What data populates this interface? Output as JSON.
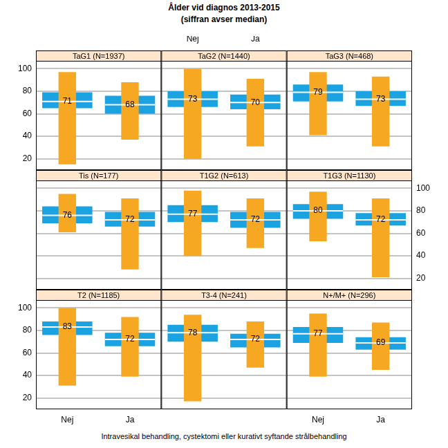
{
  "title": "Ålder vid diagnos 2013-2015",
  "subtitle": "(siffran avser median)",
  "xlabel": "Intravesikal behandling, cystektomi eller kurativt syftande strålbehandling",
  "chart_data": [
    {
      "type": "box",
      "title": "TaG1 (N=1937)",
      "categories": [
        "Nej",
        "Ja"
      ],
      "series": [
        {
          "type": "box",
          "color": "#1BA3E1",
          "values": [
            [
              65,
              71,
              79
            ],
            [
              60,
              68,
              76
            ]
          ]
        },
        {
          "type": "range",
          "color": "#F7A823",
          "values": [
            [
              15,
              97
            ],
            [
              37,
              88
            ]
          ]
        }
      ],
      "ylim": [
        10,
        107
      ],
      "yticks": [
        20,
        40,
        60,
        80,
        100
      ],
      "grid": true,
      "data_labels": true,
      "tick_labels": "y"
    },
    {
      "type": "box",
      "title": "TaG2 (N=1440)",
      "categories": [
        "Nej",
        "Ja"
      ],
      "series": [
        {
          "type": "box",
          "color": "#1BA3E1",
          "values": [
            [
              66,
              73,
              80
            ],
            [
              64,
              70,
              77
            ]
          ]
        },
        {
          "type": "range",
          "color": "#F7A823",
          "values": [
            [
              20,
              100
            ],
            [
              31,
              91
            ]
          ]
        }
      ],
      "ylim": [
        10,
        107
      ],
      "yticks": [
        20,
        40,
        60,
        80,
        100
      ],
      "grid": true,
      "data_labels": true,
      "tick_labels": "x"
    },
    {
      "type": "box",
      "title": "TaG3 (N=468)",
      "categories": [
        "Nej",
        "Ja"
      ],
      "series": [
        {
          "type": "box",
          "color": "#1BA3E1",
          "values": [
            [
              71,
              79,
              86
            ],
            [
              67,
              73,
              80
            ]
          ]
        },
        {
          "type": "range",
          "color": "#F7A823",
          "values": [
            [
              41,
              97
            ],
            [
              31,
              93
            ]
          ]
        }
      ],
      "ylim": [
        10,
        107
      ],
      "yticks": [
        20,
        40,
        60,
        80,
        100
      ],
      "grid": true,
      "data_labels": true,
      "tick_labels": false
    },
    {
      "type": "box",
      "title": "Tis (N=177)",
      "categories": [
        "Nej",
        "Ja"
      ],
      "series": [
        {
          "type": "box",
          "color": "#1BA3E1",
          "values": [
            [
              69,
              76,
              84
            ],
            [
              66,
              72,
              79
            ]
          ]
        },
        {
          "type": "range",
          "color": "#F7A823",
          "values": [
            [
              61,
              95
            ],
            [
              28,
              91
            ]
          ]
        }
      ],
      "ylim": [
        10,
        107
      ],
      "yticks": [
        20,
        40,
        60,
        80,
        100
      ],
      "grid": true,
      "data_labels": true,
      "tick_labels": false
    },
    {
      "type": "box",
      "title": "T1G2 (N=613)",
      "categories": [
        "Nej",
        "Ja"
      ],
      "series": [
        {
          "type": "box",
          "color": "#1BA3E1",
          "values": [
            [
              70,
              77,
              85
            ],
            [
              65,
              72,
              79
            ]
          ]
        },
        {
          "type": "range",
          "color": "#F7A823",
          "values": [
            [
              40,
              98
            ],
            [
              47,
              91
            ]
          ]
        }
      ],
      "ylim": [
        10,
        107
      ],
      "yticks": [
        20,
        40,
        60,
        80,
        100
      ],
      "grid": true,
      "data_labels": true,
      "tick_labels": false
    },
    {
      "type": "box",
      "title": "T1G3 (N=1130)",
      "categories": [
        "Nej",
        "Ja"
      ],
      "series": [
        {
          "type": "box",
          "color": "#1BA3E1",
          "values": [
            [
              73,
              80,
              86
            ],
            [
              67,
              72,
              78
            ]
          ]
        },
        {
          "type": "range",
          "color": "#F7A823",
          "values": [
            [
              53,
              97
            ],
            [
              21,
              91
            ]
          ]
        }
      ],
      "ylim": [
        10,
        107
      ],
      "yticks": [
        20,
        40,
        60,
        80,
        100
      ],
      "grid": true,
      "data_labels": true,
      "tick_labels": "y"
    },
    {
      "type": "box",
      "title": "T2 (N=1185)",
      "categories": [
        "Nej",
        "Ja"
      ],
      "series": [
        {
          "type": "box",
          "color": "#1BA3E1",
          "values": [
            [
              76,
              83,
              88
            ],
            [
              66,
              72,
              78
            ]
          ]
        },
        {
          "type": "range",
          "color": "#F7A823",
          "values": [
            [
              31,
              100
            ],
            [
              39,
              92
            ]
          ]
        }
      ],
      "ylim": [
        10,
        107
      ],
      "yticks": [
        20,
        40,
        60,
        80,
        100
      ],
      "grid": true,
      "data_labels": true
    },
    {
      "type": "box",
      "title": "T3-4 (N=241)",
      "categories": [
        "Nej",
        "Ja"
      ],
      "series": [
        {
          "type": "box",
          "color": "#1BA3E1",
          "values": [
            [
              70,
              78,
              85
            ],
            [
              65,
              72,
              77
            ]
          ]
        },
        {
          "type": "range",
          "color": "#F7A823",
          "values": [
            [
              17,
              94
            ],
            [
              47,
              88
            ]
          ]
        }
      ],
      "ylim": [
        10,
        107
      ],
      "yticks": [
        20,
        40,
        60,
        80,
        100
      ],
      "grid": true,
      "data_labels": true,
      "tick_labels": false
    },
    {
      "type": "box",
      "title": "N+/M+ (N=296)",
      "categories": [
        "Nej",
        "Ja"
      ],
      "series": [
        {
          "type": "box",
          "color": "#1BA3E1",
          "values": [
            [
              69,
              77,
              83
            ],
            [
              63,
              69,
              74
            ]
          ]
        },
        {
          "type": "range",
          "color": "#F7A823",
          "values": [
            [
              39,
              95
            ],
            [
              45,
              87
            ]
          ]
        }
      ],
      "ylim": [
        10,
        107
      ],
      "yticks": [
        20,
        40,
        60,
        80,
        100
      ],
      "grid": true,
      "data_labels": true,
      "tick_labels": "x"
    }
  ]
}
